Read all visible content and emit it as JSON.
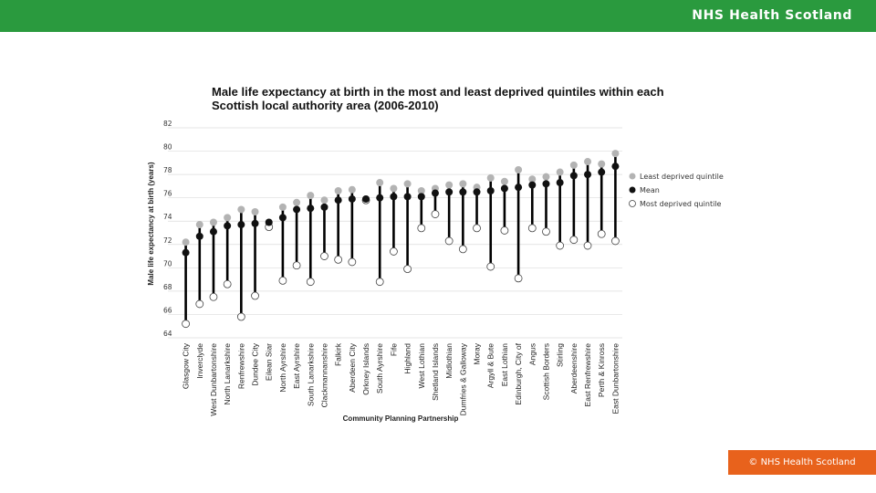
{
  "header": {
    "brand": "NHS Health Scotland"
  },
  "footer": {
    "copyright": "© NHS Health Scotland"
  },
  "colors": {
    "header_bg": "#2a9a3e",
    "footer_bg": "#e8621c",
    "least": "#b3b3b3",
    "mean": "#111111",
    "most": "#ffffff"
  },
  "chart_data": {
    "type": "scatter",
    "title": "Male life expectancy at birth in the most and least deprived quintiles within each Scottish local authority area (2006-2010)",
    "xlabel": "Community Planning Partnership",
    "ylabel": "Male life expectancy at birth (years)",
    "ylim": [
      64,
      82
    ],
    "yticks": [
      64,
      66,
      68,
      70,
      72,
      74,
      76,
      78,
      80,
      82
    ],
    "legend_position": "right",
    "categories": [
      "Glasgow City",
      "Inverclyde",
      "West Dunbartonshire",
      "North Lanarkshire",
      "Renfrewshire",
      "Dundee City",
      "Eilean Siar",
      "North Ayrshire",
      "East Ayrshire",
      "South Lanarkshire",
      "Clackmannanshire",
      "Falkirk",
      "Aberdeen City",
      "Orkney Islands",
      "South Ayrshire",
      "Fife",
      "Highland",
      "West Lothian",
      "Shetland Islands",
      "Midlothian",
      "Dumfries & Galloway",
      "Moray",
      "Argyll & Bute",
      "East Lothian",
      "Edinburgh, City of",
      "Angus",
      "Scottish Borders",
      "Stirling",
      "Aberdeenshire",
      "East Renfrewshire",
      "Perth & Kinross",
      "East Dunbartonshire"
    ],
    "series": [
      {
        "name": "Least deprived quintile",
        "values": [
          72.2,
          73.7,
          73.9,
          74.3,
          75.0,
          74.8,
          73.8,
          75.2,
          75.6,
          76.2,
          75.8,
          76.6,
          76.7,
          75.9,
          77.3,
          76.8,
          77.2,
          76.6,
          76.8,
          77.1,
          77.2,
          76.9,
          77.7,
          77.4,
          78.4,
          77.6,
          77.8,
          78.2,
          78.8,
          79.1,
          78.9,
          79.8
        ]
      },
      {
        "name": "Mean",
        "values": [
          71.3,
          72.7,
          73.1,
          73.6,
          73.7,
          73.8,
          73.9,
          74.3,
          75.0,
          75.1,
          75.2,
          75.8,
          75.9,
          75.9,
          76.0,
          76.1,
          76.1,
          76.1,
          76.4,
          76.5,
          76.5,
          76.5,
          76.6,
          76.8,
          76.9,
          77.1,
          77.2,
          77.3,
          77.9,
          78.0,
          78.2,
          78.7
        ]
      },
      {
        "name": "Most deprived quintile",
        "values": [
          65.2,
          66.9,
          67.5,
          68.6,
          65.8,
          67.6,
          73.5,
          68.9,
          70.2,
          68.8,
          71.0,
          70.7,
          70.5,
          75.8,
          68.8,
          71.4,
          69.9,
          73.4,
          74.6,
          72.3,
          71.6,
          73.4,
          70.1,
          73.2,
          69.1,
          73.4,
          73.1,
          71.9,
          72.4,
          71.9,
          72.9,
          72.3
        ]
      }
    ]
  }
}
